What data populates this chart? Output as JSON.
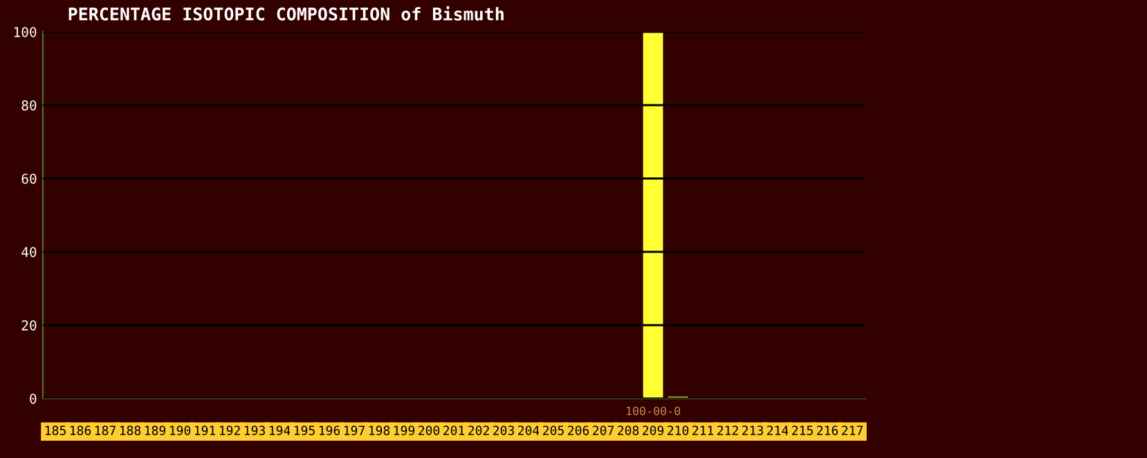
{
  "chart_data": {
    "type": "bar",
    "title": "PERCENTAGE ISOTOPIC COMPOSITION of Bismuth",
    "categories": [
      "185",
      "186",
      "187",
      "188",
      "189",
      "190",
      "191",
      "192",
      "193",
      "194",
      "195",
      "196",
      "197",
      "198",
      "199",
      "200",
      "201",
      "202",
      "203",
      "204",
      "205",
      "206",
      "207",
      "208",
      "209",
      "210",
      "211",
      "212",
      "213",
      "214",
      "215",
      "216",
      "217"
    ],
    "values": [
      0,
      0,
      0,
      0,
      0,
      0,
      0,
      0,
      0,
      0,
      0,
      0,
      0,
      0,
      0,
      0,
      0,
      0,
      0,
      0,
      0,
      0,
      0,
      0,
      100,
      0.5,
      0,
      0,
      0,
      0,
      0,
      0,
      0
    ],
    "value_labels": [
      null,
      null,
      null,
      null,
      null,
      null,
      null,
      null,
      null,
      null,
      null,
      null,
      null,
      null,
      null,
      null,
      null,
      null,
      null,
      null,
      null,
      null,
      null,
      null,
      "100-00-0",
      null,
      null,
      null,
      null,
      null,
      null,
      null,
      null
    ],
    "color": "#ffff33",
    "ylim": [
      0,
      100
    ],
    "yticks": [
      0,
      20,
      40,
      60,
      80,
      100
    ],
    "grid": "y"
  }
}
